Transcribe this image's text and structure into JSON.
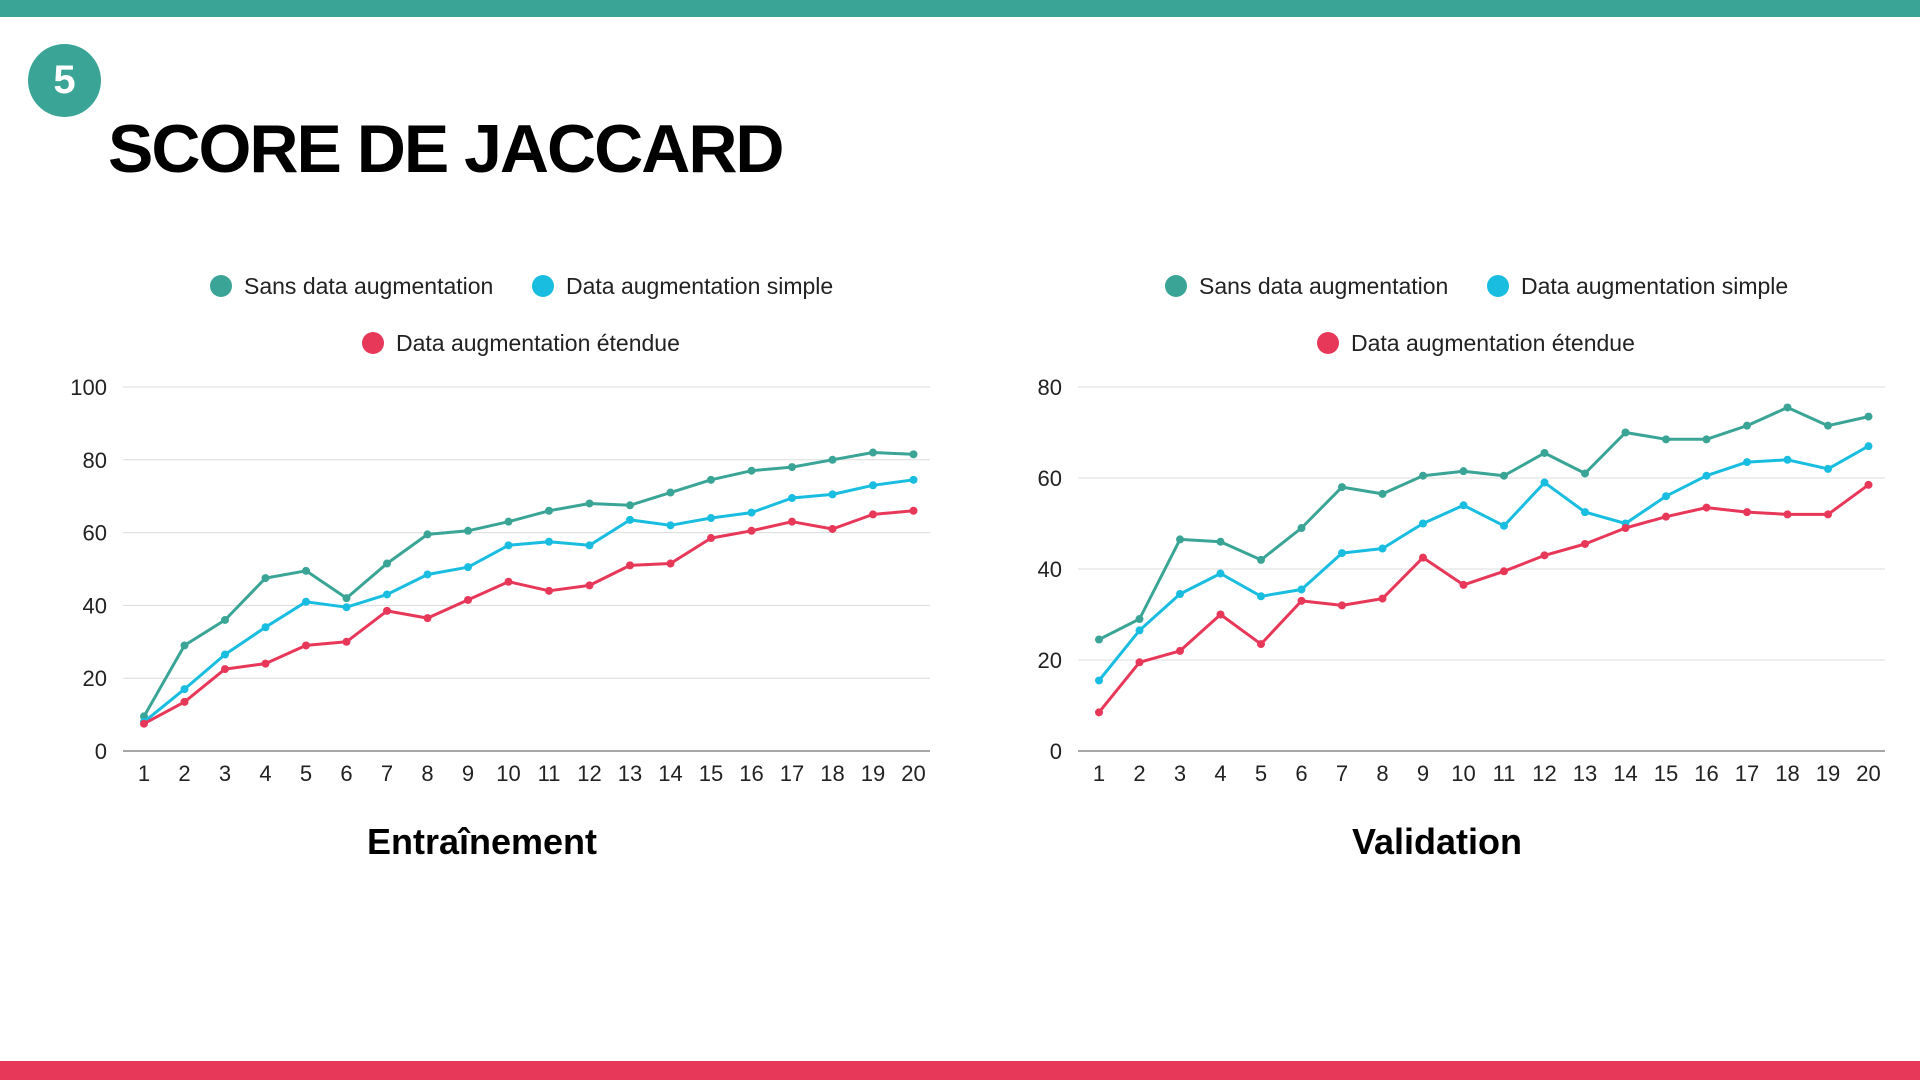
{
  "slide": {
    "number": "5",
    "title": "SCORE DE JACCARD",
    "accent_color": "#3aa596",
    "bottom_color": "#e8385a"
  },
  "chart_data": [
    {
      "type": "line",
      "title": "Entraînement",
      "xlabel": "",
      "ylabel": "",
      "categories": [
        "1",
        "2",
        "3",
        "4",
        "5",
        "6",
        "7",
        "8",
        "9",
        "10",
        "11",
        "12",
        "13",
        "14",
        "15",
        "16",
        "17",
        "18",
        "19",
        "20"
      ],
      "ylim": [
        0,
        100
      ],
      "yticks": [
        0,
        20,
        40,
        60,
        80,
        100
      ],
      "grid": true,
      "legend_position": "top",
      "series": [
        {
          "name": "Sans data augmentation",
          "color": "#3aa596",
          "values": [
            9.5,
            29,
            36,
            47.5,
            49.5,
            42,
            51.5,
            59.5,
            60.5,
            63,
            66,
            68,
            67.5,
            71,
            74.5,
            77,
            78,
            80,
            82,
            81.5
          ]
        },
        {
          "name": "Data augmentation simple",
          "color": "#19bde0",
          "values": [
            8,
            17,
            26.5,
            34,
            41,
            39.5,
            43,
            48.5,
            50.5,
            56.5,
            57.5,
            56.5,
            63.5,
            62,
            64,
            65.5,
            69.5,
            70.5,
            73,
            74.5
          ]
        },
        {
          "name": "Data augmentation étendue",
          "color": "#e8385a",
          "values": [
            7.5,
            13.5,
            22.5,
            24,
            29,
            30,
            38.5,
            36.5,
            41.5,
            46.5,
            44,
            45.5,
            51,
            51.5,
            58.5,
            60.5,
            63,
            61,
            65,
            66
          ]
        }
      ]
    },
    {
      "type": "line",
      "title": "Validation",
      "xlabel": "",
      "ylabel": "",
      "categories": [
        "1",
        "2",
        "3",
        "4",
        "5",
        "6",
        "7",
        "8",
        "9",
        "10",
        "11",
        "12",
        "13",
        "14",
        "15",
        "16",
        "17",
        "18",
        "19",
        "20"
      ],
      "ylim": [
        0,
        80
      ],
      "yticks": [
        0,
        20,
        40,
        60,
        80
      ],
      "grid": true,
      "legend_position": "top",
      "series": [
        {
          "name": "Sans data augmentation",
          "color": "#3aa596",
          "values": [
            24.5,
            29,
            46.5,
            46,
            42,
            49,
            58,
            56.5,
            60.5,
            61.5,
            60.5,
            65.5,
            61,
            70,
            68.5,
            68.5,
            71.5,
            75.5,
            71.5,
            73.5
          ]
        },
        {
          "name": "Data augmentation simple",
          "color": "#19bde0",
          "values": [
            15.5,
            26.5,
            34.5,
            39,
            34,
            35.5,
            43.5,
            44.5,
            50,
            54,
            49.5,
            59,
            52.5,
            50,
            56,
            60.5,
            63.5,
            64,
            62,
            67
          ]
        },
        {
          "name": "Data augmentation étendue",
          "color": "#e8385a",
          "values": [
            8.5,
            19.5,
            22,
            30,
            23.5,
            33,
            32,
            33.5,
            42.5,
            36.5,
            39.5,
            43,
            45.5,
            49,
            51.5,
            53.5,
            52.5,
            52,
            52,
            58.5
          ]
        }
      ]
    }
  ]
}
